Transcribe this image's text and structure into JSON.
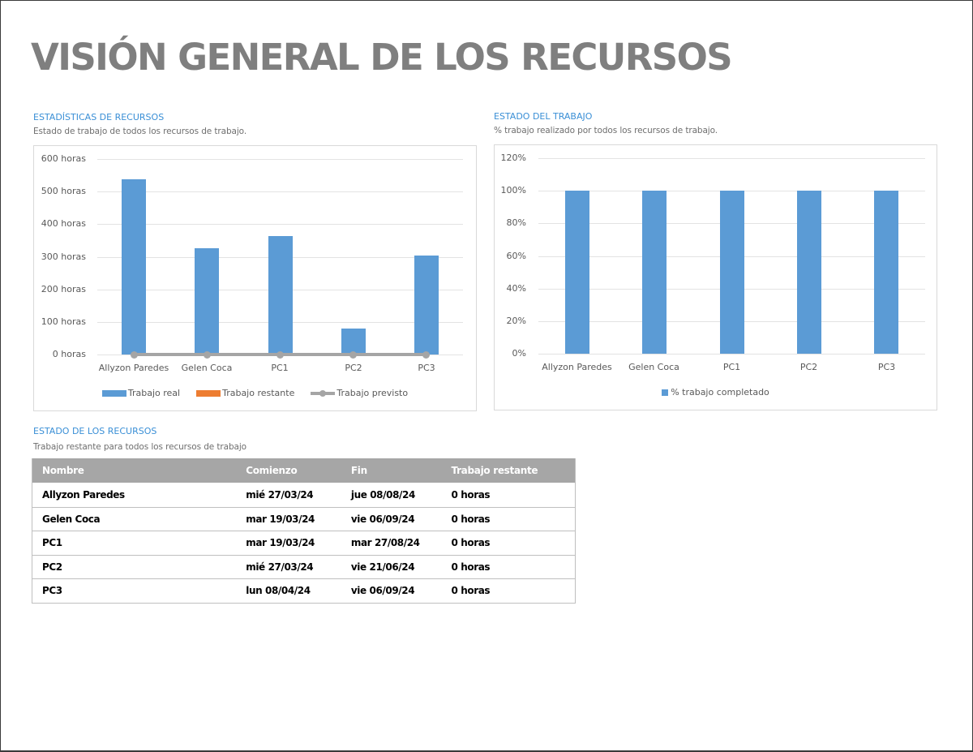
{
  "page": {
    "title": "VISIÓN GENERAL DE LOS RECURSOS"
  },
  "resource_stats": {
    "title": "ESTADÍSTICAS DE RECURSOS",
    "subtitle": "Estado de trabajo de todos los recursos de trabajo."
  },
  "work_status": {
    "title": "ESTADO DEL TRABAJO",
    "subtitle": "% trabajo realizado por todos los recursos de trabajo."
  },
  "resource_status": {
    "title": "ESTADO DE LOS RECURSOS",
    "subtitle": "Trabajo restante para todos los recursos de trabajo",
    "columns": [
      "Nombre",
      "Comienzo",
      "Fin",
      "Trabajo restante"
    ],
    "rows": [
      [
        "Allyzon Paredes",
        "mié 27/03/24",
        "jue 08/08/24",
        "0 horas"
      ],
      [
        "Gelen Coca",
        "mar 19/03/24",
        "vie 06/09/24",
        "0 horas"
      ],
      [
        "PC1",
        "mar 19/03/24",
        "mar 27/08/24",
        "0 horas"
      ],
      [
        "PC2",
        "mié 27/03/24",
        "vie 21/06/24",
        "0 horas"
      ],
      [
        "PC3",
        "lun 08/04/24",
        "vie 06/09/24",
        "0 horas"
      ]
    ]
  },
  "colors": {
    "accent": "#3a8fd6",
    "bar_blue": "#5b9bd5",
    "bar_orange": "#ed7d31",
    "line_gray": "#a5a5a5",
    "header_gray": "#a6a6a6",
    "title_gray": "#7f7f7f"
  },
  "chart_data": [
    {
      "type": "bar",
      "title": "ESTADÍSTICAS DE RECURSOS",
      "categories": [
        "Allyzon Paredes",
        "Gelen Coca",
        "PC1",
        "PC2",
        "PC3"
      ],
      "series": [
        {
          "name": "Trabajo real",
          "type": "bar",
          "color": "#5b9bd5",
          "values": [
            538,
            326,
            363,
            80,
            303
          ]
        },
        {
          "name": "Trabajo restante",
          "type": "bar",
          "color": "#ed7d31",
          "values": [
            0,
            0,
            0,
            0,
            0
          ]
        },
        {
          "name": "Trabajo previsto",
          "type": "line",
          "color": "#a5a5a5",
          "values": [
            0,
            0,
            0,
            0,
            0
          ]
        }
      ],
      "yticks": [
        "0 horas",
        "100 horas",
        "200 horas",
        "300 horas",
        "400 horas",
        "500 horas",
        "600 horas"
      ],
      "ylim": [
        0,
        600
      ],
      "ylabel": "",
      "xlabel": "",
      "grid": true,
      "legend_position": "bottom"
    },
    {
      "type": "bar",
      "title": "ESTADO DEL TRABAJO",
      "categories": [
        "Allyzon Paredes",
        "Gelen Coca",
        "PC1",
        "PC2",
        "PC3"
      ],
      "series": [
        {
          "name": "% trabajo completado",
          "color": "#5b9bd5",
          "values": [
            100,
            100,
            100,
            100,
            100
          ]
        }
      ],
      "yticks": [
        "0%",
        "20%",
        "40%",
        "60%",
        "80%",
        "100%",
        "120%"
      ],
      "ylim": [
        0,
        120
      ],
      "ylabel": "",
      "xlabel": "",
      "grid": true,
      "legend_position": "bottom"
    }
  ]
}
